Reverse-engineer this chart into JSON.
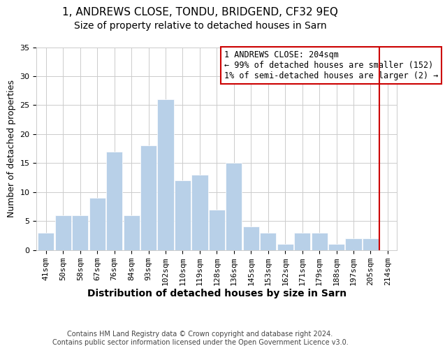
{
  "title": "1, ANDREWS CLOSE, TONDU, BRIDGEND, CF32 9EQ",
  "subtitle": "Size of property relative to detached houses in Sarn",
  "xlabel": "Distribution of detached houses by size in Sarn",
  "ylabel": "Number of detached properties",
  "bar_labels": [
    "41sqm",
    "50sqm",
    "58sqm",
    "67sqm",
    "76sqm",
    "84sqm",
    "93sqm",
    "102sqm",
    "110sqm",
    "119sqm",
    "128sqm",
    "136sqm",
    "145sqm",
    "153sqm",
    "162sqm",
    "171sqm",
    "179sqm",
    "188sqm",
    "197sqm",
    "205sqm",
    "214sqm"
  ],
  "bar_values": [
    3,
    6,
    6,
    9,
    17,
    6,
    18,
    26,
    12,
    13,
    7,
    15,
    4,
    3,
    1,
    3,
    3,
    1,
    2,
    2,
    0
  ],
  "bar_color": "#b8d0e8",
  "bar_edge_color": "#ffffff",
  "reference_line_color": "#cc0000",
  "annotation_text": "1 ANDREWS CLOSE: 204sqm\n← 99% of detached houses are smaller (152)\n1% of semi-detached houses are larger (2) →",
  "annotation_box_edge_color": "#cc0000",
  "annotation_box_face_color": "#ffffff",
  "ylim": [
    0,
    35
  ],
  "yticks": [
    0,
    5,
    10,
    15,
    20,
    25,
    30,
    35
  ],
  "footer_line1": "Contains HM Land Registry data © Crown copyright and database right 2024.",
  "footer_line2": "Contains public sector information licensed under the Open Government Licence v3.0.",
  "background_color": "#ffffff",
  "grid_color": "#cccccc",
  "title_fontsize": 11,
  "subtitle_fontsize": 10,
  "xlabel_fontsize": 10,
  "ylabel_fontsize": 9,
  "tick_fontsize": 8,
  "annotation_fontsize": 8.5,
  "footer_fontsize": 7
}
